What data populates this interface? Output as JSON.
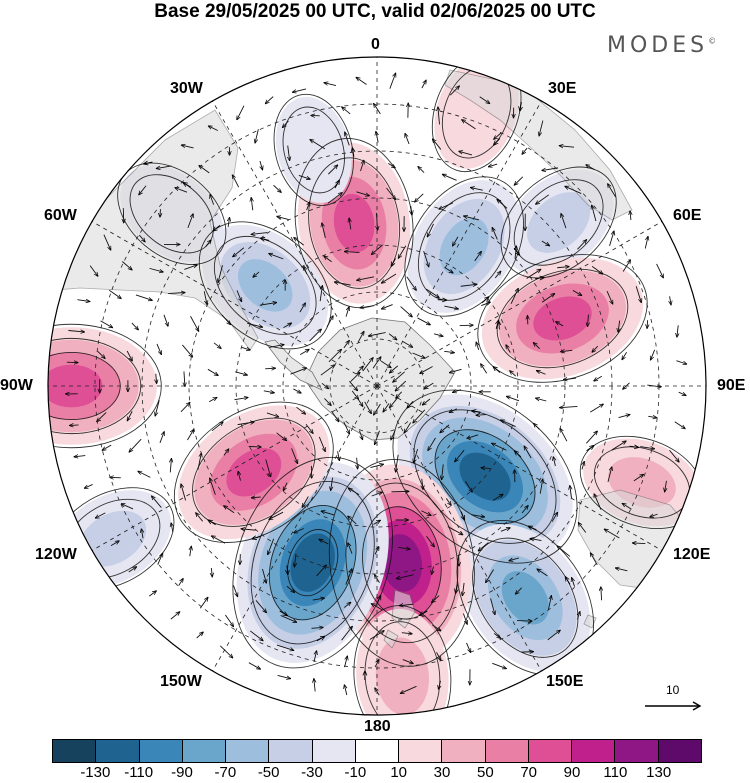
{
  "title": "Base 29/05/2025 00 UTC, valid 02/06/2025 00 UTC",
  "brand": "MODES",
  "brand_mark": "©",
  "longitude_labels": {
    "lon0": "0",
    "lon30e": "30E",
    "lon60e": "60E",
    "lon90e": "90E",
    "lon120e": "120E",
    "lon150e": "150E",
    "lon180": "180",
    "lon150w": "150W",
    "lon120w": "120W",
    "lon90w": "90W",
    "lon60w": "60W",
    "lon30w": "30W"
  },
  "reference_vector": {
    "label": "10"
  },
  "colorbar": {
    "colors": [
      "#16425e",
      "#1f6390",
      "#3a86b8",
      "#6aa5cc",
      "#9ebede",
      "#c6cfe6",
      "#e6e6f2",
      "#ffffff",
      "#f8d9de",
      "#f1b0bf",
      "#ea7fa6",
      "#de4f95",
      "#c0208c",
      "#8e1685",
      "#5d0a6a"
    ],
    "ticks": [
      "-130",
      "-110",
      "-90",
      "-70",
      "-50",
      "-30",
      "-10",
      "10",
      "30",
      "50",
      "70",
      "90",
      "110",
      "130"
    ]
  },
  "anomaly_centers": [
    {
      "lon": -8,
      "lat": -55,
      "value": 80
    },
    {
      "lon": 32,
      "lat": -55,
      "value": -60
    },
    {
      "lon": 48,
      "lat": -38,
      "value": -40
    },
    {
      "lon": 70,
      "lat": -48,
      "value": 85
    },
    {
      "lon": 130,
      "lat": -60,
      "value": -120
    },
    {
      "lon": 110,
      "lat": -30,
      "value": 35
    },
    {
      "lon": 145,
      "lat": -35,
      "value": -80
    },
    {
      "lon": 172,
      "lat": -52,
      "value": 120
    },
    {
      "lon": -160,
      "lat": -50,
      "value": -130
    },
    {
      "lon": -125,
      "lat": -58,
      "value": 85
    },
    {
      "lon": -90,
      "lat": -25,
      "value": 90
    },
    {
      "lon": -120,
      "lat": -25,
      "value": -40
    },
    {
      "lon": -48,
      "lat": -58,
      "value": -60
    },
    {
      "lon": -50,
      "lat": -33,
      "value": -30
    },
    {
      "lon": 175,
      "lat": -28,
      "value": 50
    },
    {
      "lon": 20,
      "lat": -28,
      "value": 30
    },
    {
      "lon": -15,
      "lat": -38,
      "value": -20
    }
  ]
}
